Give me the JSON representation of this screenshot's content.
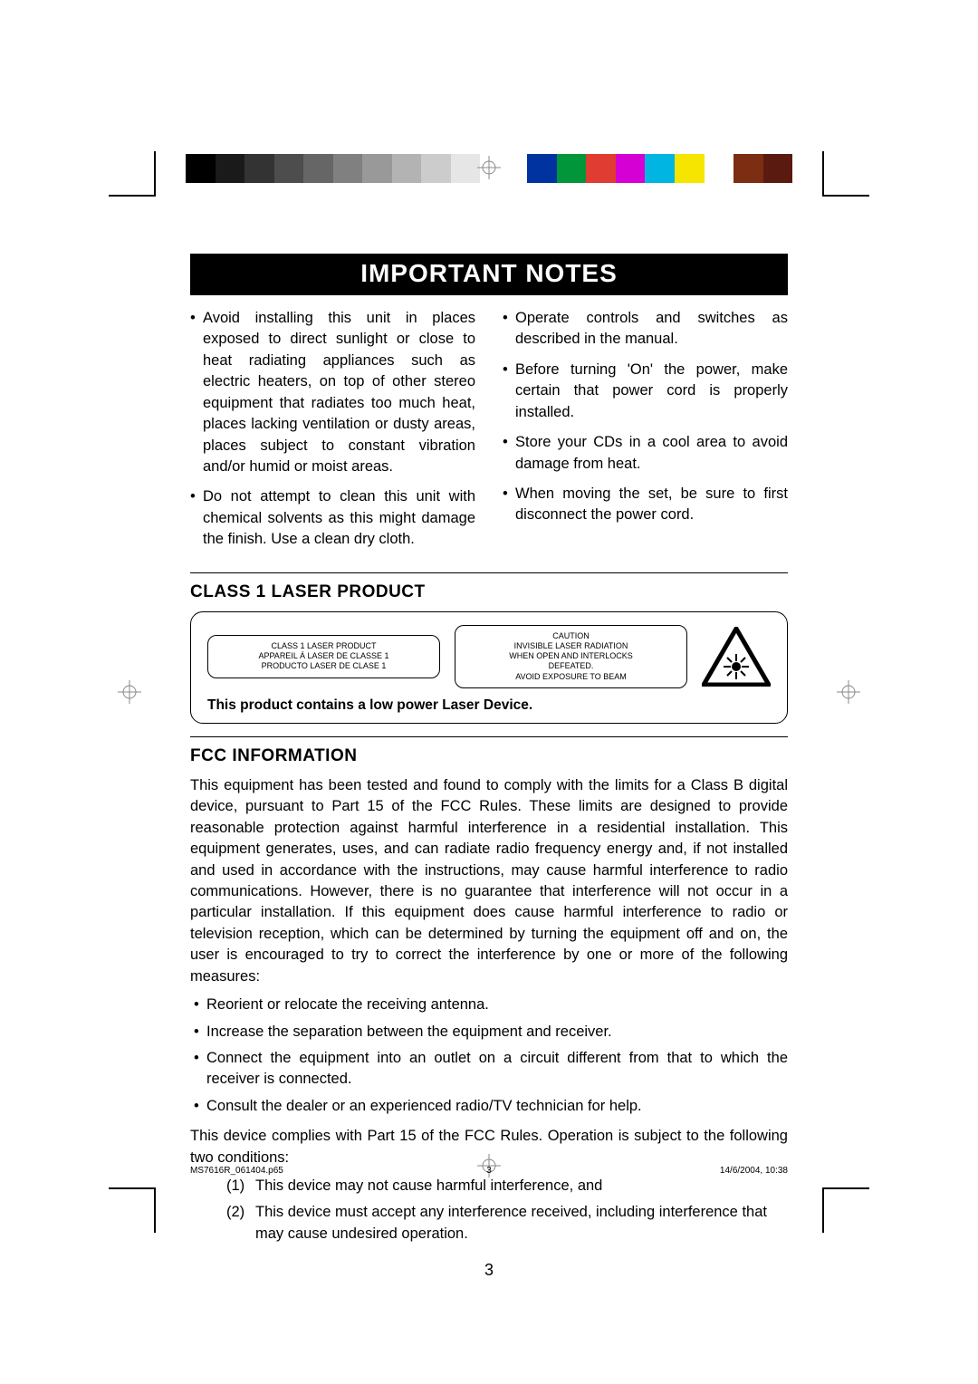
{
  "colorbar": {
    "left": [
      "#000000",
      "#1a1a1a",
      "#333333",
      "#4d4d4d",
      "#666666",
      "#808080",
      "#999999",
      "#b3b3b3",
      "#cccccc",
      "#e6e6e6",
      "#ffffff"
    ],
    "right": [
      "#0033a0",
      "#009639",
      "#e03c31",
      "#d400d4",
      "#00b5e2",
      "#f6e500",
      "#ffffff",
      "#7c2d12",
      "#5a1a0f"
    ]
  },
  "title": "IMPORTANT NOTES",
  "notes": {
    "left": [
      "Avoid installing this unit in places exposed to direct sunlight or close to heat radiating appliances such as electric heaters, on top of other  stereo equipment that radiates too much heat, places lacking ventilation or dusty areas, places subject to constant vibration and/or humid or moist areas.",
      "Do not attempt to clean this unit with chemical solvents as this might damage the finish. Use a clean dry cloth."
    ],
    "right": [
      "Operate controls and switches as described in the manual.",
      "Before turning 'On' the power, make certain that power cord is properly installed.",
      "Store your CDs in a cool area to avoid damage from heat.",
      "When moving the set, be sure to first disconnect the power cord."
    ]
  },
  "laser": {
    "heading": "CLASS 1 LASER PRODUCT",
    "box1": "CLASS 1 LASER PRODUCT\nAPPAREIL Á LASER DE CLASSE 1\nPRODUCTO LASER DE CLASE 1",
    "box2": "CAUTION\nINVISIBLE LASER RADIATION\nWHEN OPEN AND INTERLOCKS\nDEFEATED.\nAVOID EXPOSURE TO BEAM",
    "footnote": "This product contains a low power Laser Device."
  },
  "fcc": {
    "heading": "FCC INFORMATION",
    "para1": "This equipment has been tested and found to comply with the limits for a Class B digital device, pursuant to Part 15 of the FCC Rules. These limits are designed to provide reasonable protection against harmful interference in a residential installation. This equipment generates, uses, and can radiate radio frequency energy and, if not installed and used in accordance with the instructions, may cause harmful interference to radio communications. However, there is no guarantee that interference will not occur in a particular installation. If this equipment does cause harmful interference to radio or television reception, which can be determined by turning the equipment off and on, the user is encouraged to try to correct the interference by one or more of the following measures:",
    "measures": [
      "Reorient or relocate the receiving antenna.",
      "Increase the separation between the equipment and receiver.",
      "Connect the equipment into an outlet on a circuit different from that to which the receiver is connected.",
      "Consult the dealer or an experienced radio/TV technician for help."
    ],
    "para2": "This device complies with Part 15 of the FCC Rules. Operation is subject to the following two conditions:",
    "conditions": [
      "This device may not cause harmful interference, and",
      "This device must accept any interference received, including interference that may cause undesired operation."
    ]
  },
  "page_number": "3",
  "footer": {
    "file": "MS7616R_061404.p65",
    "page": "3",
    "datetime": "14/6/2004, 10:38"
  }
}
